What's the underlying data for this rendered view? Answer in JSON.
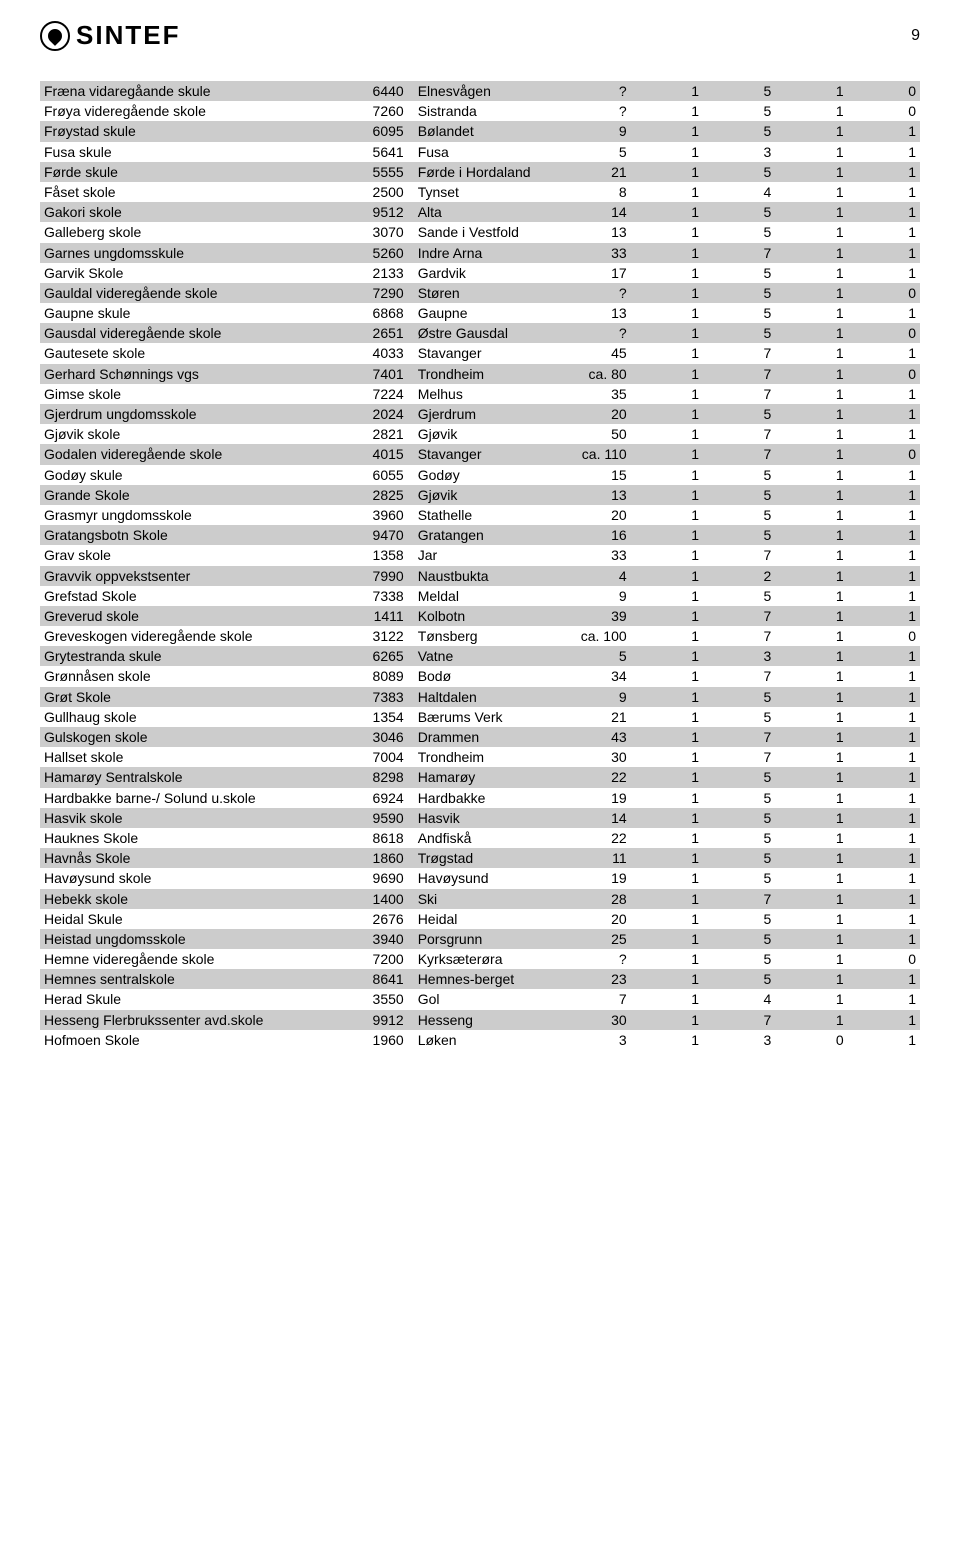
{
  "header": {
    "logo_text": "SINTEF",
    "page_number": "9"
  },
  "table": {
    "row_colors": {
      "even": "#cccccc",
      "odd": "#ffffff"
    },
    "font_size": 14,
    "columns": [
      "name",
      "code",
      "place",
      "v1",
      "v2",
      "v3",
      "v4",
      "v5"
    ],
    "rows": [
      [
        "Fræna vidaregåande skule",
        "6440",
        "Elnesvågen",
        "?",
        "1",
        "5",
        "1",
        "0"
      ],
      [
        "Frøya videregående skole",
        "7260",
        "Sistranda",
        "?",
        "1",
        "5",
        "1",
        "0"
      ],
      [
        "Frøystad skule",
        "6095",
        "Bølandet",
        "9",
        "1",
        "5",
        "1",
        "1"
      ],
      [
        "Fusa skule",
        "5641",
        "Fusa",
        "5",
        "1",
        "3",
        "1",
        "1"
      ],
      [
        "Førde skule",
        "5555",
        "Førde i Hordaland",
        "21",
        "1",
        "5",
        "1",
        "1"
      ],
      [
        "Fåset skole",
        "2500",
        "Tynset",
        "8",
        "1",
        "4",
        "1",
        "1"
      ],
      [
        "Gakori skole",
        "9512",
        "Alta",
        "14",
        "1",
        "5",
        "1",
        "1"
      ],
      [
        "Galleberg skole",
        "3070",
        "Sande i Vestfold",
        "13",
        "1",
        "5",
        "1",
        "1"
      ],
      [
        "Garnes ungdomsskule",
        "5260",
        "Indre Arna",
        "33",
        "1",
        "7",
        "1",
        "1"
      ],
      [
        "Garvik Skole",
        "2133",
        "Gardvik",
        "17",
        "1",
        "5",
        "1",
        "1"
      ],
      [
        "Gauldal videregående skole",
        "7290",
        "Støren",
        "?",
        "1",
        "5",
        "1",
        "0"
      ],
      [
        "Gaupne skule",
        "6868",
        "Gaupne",
        "13",
        "1",
        "5",
        "1",
        "1"
      ],
      [
        "Gausdal videregående skole",
        "2651",
        "Østre Gausdal",
        "?",
        "1",
        "5",
        "1",
        "0"
      ],
      [
        "Gautesete skole",
        "4033",
        "Stavanger",
        "45",
        "1",
        "7",
        "1",
        "1"
      ],
      [
        "Gerhard Schønnings vgs",
        "7401",
        "Trondheim",
        "ca. 80",
        "1",
        "7",
        "1",
        "0"
      ],
      [
        "Gimse skole",
        "7224",
        "Melhus",
        "35",
        "1",
        "7",
        "1",
        "1"
      ],
      [
        "Gjerdrum ungdomsskole",
        "2024",
        "Gjerdrum",
        "20",
        "1",
        "5",
        "1",
        "1"
      ],
      [
        "Gjøvik skole",
        "2821",
        "Gjøvik",
        "50",
        "1",
        "7",
        "1",
        "1"
      ],
      [
        "Godalen videregående skole",
        "4015",
        "Stavanger",
        "ca. 110",
        "1",
        "7",
        "1",
        "0"
      ],
      [
        "Godøy skule",
        "6055",
        "Godøy",
        "15",
        "1",
        "5",
        "1",
        "1"
      ],
      [
        "Grande Skole",
        "2825",
        "Gjøvik",
        "13",
        "1",
        "5",
        "1",
        "1"
      ],
      [
        "Grasmyr ungdomsskole",
        "3960",
        "Stathelle",
        "20",
        "1",
        "5",
        "1",
        "1"
      ],
      [
        "Gratangsbotn Skole",
        "9470",
        "Gratangen",
        "16",
        "1",
        "5",
        "1",
        "1"
      ],
      [
        "Grav skole",
        "1358",
        "Jar",
        "33",
        "1",
        "7",
        "1",
        "1"
      ],
      [
        "Gravvik oppvekstsenter",
        "7990",
        "Naustbukta",
        "4",
        "1",
        "2",
        "1",
        "1"
      ],
      [
        "Grefstad Skole",
        "7338",
        "Meldal",
        "9",
        "1",
        "5",
        "1",
        "1"
      ],
      [
        "Greverud skole",
        "1411",
        "Kolbotn",
        "39",
        "1",
        "7",
        "1",
        "1"
      ],
      [
        "Greveskogen videregående skole",
        "3122",
        "Tønsberg",
        "ca. 100",
        "1",
        "7",
        "1",
        "0"
      ],
      [
        "Grytestranda skule",
        "6265",
        "Vatne",
        "5",
        "1",
        "3",
        "1",
        "1"
      ],
      [
        "Grønnåsen skole",
        "8089",
        "Bodø",
        "34",
        "1",
        "7",
        "1",
        "1"
      ],
      [
        "Grøt Skole",
        "7383",
        "Haltdalen",
        "9",
        "1",
        "5",
        "1",
        "1"
      ],
      [
        "Gullhaug skole",
        "1354",
        "Bærums Verk",
        "21",
        "1",
        "5",
        "1",
        "1"
      ],
      [
        "Gulskogen skole",
        "3046",
        "Drammen",
        "43",
        "1",
        "7",
        "1",
        "1"
      ],
      [
        "Hallset skole",
        "7004",
        "Trondheim",
        "30",
        "1",
        "7",
        "1",
        "1"
      ],
      [
        "Hamarøy Sentralskole",
        "8298",
        "Hamarøy",
        "22",
        "1",
        "5",
        "1",
        "1"
      ],
      [
        "Hardbakke barne-/ Solund u.skole",
        "6924",
        "Hardbakke",
        "19",
        "1",
        "5",
        "1",
        "1"
      ],
      [
        "Hasvik skole",
        "9590",
        "Hasvik",
        "14",
        "1",
        "5",
        "1",
        "1"
      ],
      [
        "Hauknes Skole",
        "8618",
        "Andfiskå",
        "22",
        "1",
        "5",
        "1",
        "1"
      ],
      [
        "Havnås Skole",
        "1860",
        "Trøgstad",
        "11",
        "1",
        "5",
        "1",
        "1"
      ],
      [
        "Havøysund skole",
        "9690",
        "Havøysund",
        "19",
        "1",
        "5",
        "1",
        "1"
      ],
      [
        "Hebekk skole",
        "1400",
        "Ski",
        "28",
        "1",
        "7",
        "1",
        "1"
      ],
      [
        "Heidal Skule",
        "2676",
        "Heidal",
        "20",
        "1",
        "5",
        "1",
        "1"
      ],
      [
        "Heistad ungdomsskole",
        "3940",
        "Porsgrunn",
        "25",
        "1",
        "5",
        "1",
        "1"
      ],
      [
        "Hemne videregående skole",
        "7200",
        "Kyrksæterøra",
        "?",
        "1",
        "5",
        "1",
        "0"
      ],
      [
        "Hemnes sentralskole",
        "8641",
        "Hemnes-berget",
        "23",
        "1",
        "5",
        "1",
        "1"
      ],
      [
        "Herad Skule",
        "3550",
        "Gol",
        "7",
        "1",
        "4",
        "1",
        "1"
      ],
      [
        "Hesseng  Flerbrukssenter avd.skole",
        "9912",
        "Hesseng",
        "30",
        "1",
        "7",
        "1",
        "1"
      ],
      [
        "Hofmoen Skole",
        "1960",
        "Løken",
        "3",
        "1",
        "3",
        "0",
        "1"
      ]
    ]
  }
}
